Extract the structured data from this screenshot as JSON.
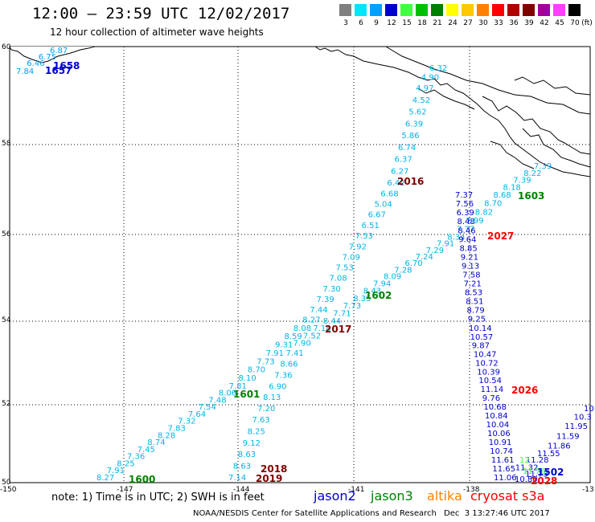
{
  "header": {
    "title": "12:00 – 23:59 UTC 12/02/2017",
    "subtitle": "12 hour collection of altimeter wave heights"
  },
  "legend": {
    "unit_label": "(ft)",
    "bins": [
      {
        "label": "3",
        "color": "#808080"
      },
      {
        "label": "6",
        "color": "#00e5ff"
      },
      {
        "label": "9",
        "color": "#00a0ff"
      },
      {
        "label": "12",
        "color": "#0000cd"
      },
      {
        "label": "15",
        "color": "#40ff40"
      },
      {
        "label": "18",
        "color": "#00c000"
      },
      {
        "label": "21",
        "color": "#008000"
      },
      {
        "label": "24",
        "color": "#ffff00"
      },
      {
        "label": "27",
        "color": "#ffc800"
      },
      {
        "label": "30",
        "color": "#ff8000"
      },
      {
        "label": "33",
        "color": "#ff0000"
      },
      {
        "label": "36",
        "color": "#b00000"
      },
      {
        "label": "39",
        "color": "#800000"
      },
      {
        "label": "42",
        "color": "#a000a0"
      },
      {
        "label": "45",
        "color": "#ff40ff"
      },
      {
        "label": "70",
        "color": "#000000"
      }
    ]
  },
  "map": {
    "lon_labels": [
      "-150",
      "-147",
      "-144",
      "-141",
      "-138",
      "-13"
    ],
    "lat_labels": [
      "60",
      "58",
      "56",
      "54",
      "52",
      "50"
    ],
    "pass_labels": [
      {
        "text": "1658",
        "color": "#0000cd"
      },
      {
        "text": "1657",
        "color": "#0000cd"
      },
      {
        "text": "2016",
        "color": "#800000"
      },
      {
        "text": "1603",
        "color": "#008000"
      },
      {
        "text": "2027",
        "color": "#ff0000"
      },
      {
        "text": "1602",
        "color": "#008000"
      },
      {
        "text": "2017",
        "color": "#800000"
      },
      {
        "text": "1601",
        "color": "#008000"
      },
      {
        "text": "2026",
        "color": "#ff0000"
      },
      {
        "text": "2018",
        "color": "#800000"
      },
      {
        "text": "2019",
        "color": "#800000"
      },
      {
        "text": "1600",
        "color": "#008000"
      },
      {
        "text": "1502",
        "color": "#0000cd"
      },
      {
        "text": "2028",
        "color": "#ff0000"
      }
    ],
    "track_nw": [
      "7.84",
      "6.46",
      "6.75",
      "6.87"
    ],
    "track_2016": [
      "6.32",
      "4.90",
      "4.97",
      "4.52",
      "5.62",
      "6.39",
      "5.86",
      "6.74",
      "6.37",
      "6.27",
      "6.42",
      "6.68",
      "5.04",
      "6.67",
      "6.51",
      "7.53",
      "7.92",
      "7.09",
      "7.53",
      "7.08",
      "7.30",
      "7.39",
      "7.44",
      "8.27",
      "8.08",
      "8.59",
      "9.31",
      "7.91",
      "7.73",
      "8.70",
      "8.10",
      "7.81",
      "8.06",
      "7.48",
      "7.54",
      "7.64",
      "7.32",
      "7.83",
      "8.28",
      "8.74",
      "7.45",
      "7.36",
      "8.25",
      "7.91",
      "8.27"
    ],
    "track_1603": [
      "7.39",
      "8.22",
      "7.39",
      "8.18",
      "8.68",
      "8.70",
      "8.82",
      "7.99",
      "7.77",
      "8.34",
      "7.91",
      "7.29",
      "7.24",
      "6.70",
      "7.28",
      "8.09",
      "7.94",
      "8.43",
      "8.35",
      "7.73",
      "7.71",
      "8.44",
      "7.18",
      "7.52",
      "7.90",
      "7.41",
      "8.66",
      "7.36",
      "6.90",
      "8.13",
      "7.20",
      "7.63",
      "8.25",
      "9.12",
      "8.63",
      "8.63",
      "7.14"
    ],
    "track_2027": [
      "7.37",
      "7.56",
      "6.39",
      "8.48",
      "8.46",
      "9.64",
      "8.85",
      "9.21",
      "9.13",
      "7.58",
      "7.21",
      "8.53",
      "8.51",
      "8.79",
      "9.25",
      "10.14",
      "10.57",
      "9.87",
      "10.47",
      "10.72",
      "10.39",
      "10.54",
      "11.14",
      "9.76",
      "10.68",
      "10.84",
      "10.04",
      "10.06",
      "10.91",
      "10.74",
      "11.61",
      "11.65",
      "11.06"
    ],
    "track_1502": [
      "10",
      "10.3",
      "11.95",
      "11.59",
      "11.86",
      "11.55",
      "11.28",
      "11.32",
      "11.73",
      "10.80"
    ],
    "track_1502_green": [
      "12",
      "11.76"
    ]
  },
  "footer": {
    "note": "note: 1) Time is in UTC; 2) SWH is in feet",
    "satellites": [
      {
        "name": "jason2",
        "color": "#0000cd"
      },
      {
        "name": "jason3",
        "color": "#008000"
      },
      {
        "name": "altika",
        "color": "#ff8000"
      },
      {
        "name": "cryosat s3a",
        "color": "#ff0000"
      }
    ],
    "credit": "NOAA/NESDIS Center for Satellite Applications and Research",
    "stamp": "Dec  3 13:27:46 UTC 2017"
  }
}
